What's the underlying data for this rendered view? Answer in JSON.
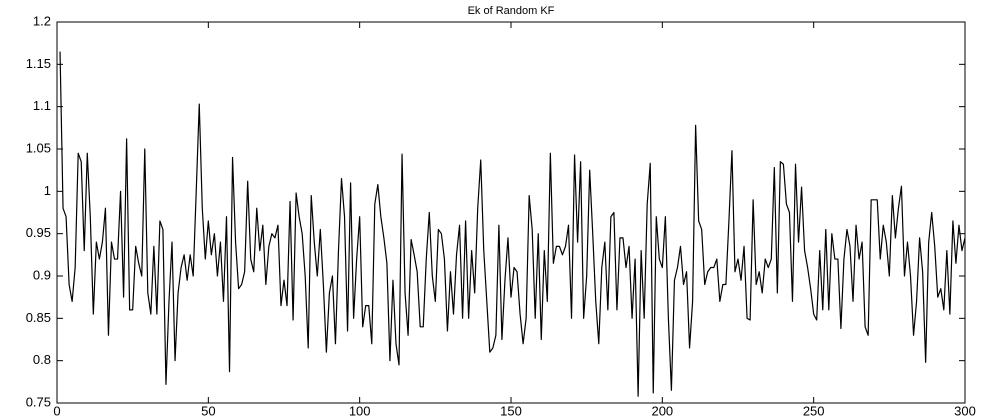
{
  "chart_data": {
    "type": "line",
    "title": "Ek of Random KF",
    "x": [
      1,
      2,
      3,
      4,
      5,
      6,
      7,
      8,
      9,
      10,
      11,
      12,
      13,
      14,
      15,
      16,
      17,
      18,
      19,
      20,
      21,
      22,
      23,
      24,
      25,
      26,
      27,
      28,
      29,
      30,
      31,
      32,
      33,
      34,
      35,
      36,
      37,
      38,
      39,
      40,
      41,
      42,
      43,
      44,
      45,
      46,
      47,
      48,
      49,
      50,
      51,
      52,
      53,
      54,
      55,
      56,
      57,
      58,
      59,
      60,
      61,
      62,
      63,
      64,
      65,
      66,
      67,
      68,
      69,
      70,
      71,
      72,
      73,
      74,
      75,
      76,
      77,
      78,
      79,
      80,
      81,
      82,
      83,
      84,
      85,
      86,
      87,
      88,
      89,
      90,
      91,
      92,
      93,
      94,
      95,
      96,
      97,
      98,
      99,
      100,
      101,
      102,
      103,
      104,
      105,
      106,
      107,
      108,
      109,
      110,
      111,
      112,
      113,
      114,
      115,
      116,
      117,
      118,
      119,
      120,
      121,
      122,
      123,
      124,
      125,
      126,
      127,
      128,
      129,
      130,
      131,
      132,
      133,
      134,
      135,
      136,
      137,
      138,
      139,
      140,
      141,
      142,
      143,
      144,
      145,
      146,
      147,
      148,
      149,
      150,
      151,
      152,
      153,
      154,
      155,
      156,
      157,
      158,
      159,
      160,
      161,
      162,
      163,
      164,
      165,
      166,
      167,
      168,
      169,
      170,
      171,
      172,
      173,
      174,
      175,
      176,
      177,
      178,
      179,
      180,
      181,
      182,
      183,
      184,
      185,
      186,
      187,
      188,
      189,
      190,
      191,
      192,
      193,
      194,
      195,
      196,
      197,
      198,
      199,
      200,
      201,
      202,
      203,
      204,
      205,
      206,
      207,
      208,
      209,
      210,
      211,
      212,
      213,
      214,
      215,
      216,
      217,
      218,
      219,
      220,
      221,
      222,
      223,
      224,
      225,
      226,
      227,
      228,
      229,
      230,
      231,
      232,
      233,
      234,
      235,
      236,
      237,
      238,
      239,
      240,
      241,
      242,
      243,
      244,
      245,
      246,
      247,
      248,
      249,
      250,
      251,
      252,
      253,
      254,
      255,
      256,
      257,
      258,
      259,
      260,
      261,
      262,
      263,
      264,
      265,
      266,
      267,
      268,
      269,
      270,
      271,
      272,
      273,
      274,
      275,
      276,
      277,
      278,
      279,
      280,
      281,
      282,
      283,
      284,
      285,
      286,
      287,
      288,
      289,
      290,
      291,
      292,
      293,
      294,
      295,
      296,
      297,
      298,
      299,
      300
    ],
    "series": [
      {
        "color": "#000000",
        "values": [
          1.165,
          0.98,
          0.97,
          0.89,
          0.87,
          0.91,
          1.045,
          1.035,
          0.93,
          1.045,
          0.97,
          0.855,
          0.94,
          0.92,
          0.94,
          0.98,
          0.83,
          0.94,
          0.92,
          0.92,
          1.0,
          0.875,
          1.062,
          0.86,
          0.86,
          0.935,
          0.915,
          0.9,
          1.05,
          0.88,
          0.855,
          0.935,
          0.855,
          0.965,
          0.955,
          0.772,
          0.87,
          0.94,
          0.8,
          0.88,
          0.91,
          0.925,
          0.895,
          0.925,
          0.9,
          1.0,
          1.103,
          0.98,
          0.92,
          0.965,
          0.925,
          0.95,
          0.9,
          0.94,
          0.87,
          0.97,
          0.787,
          1.04,
          0.94,
          0.885,
          0.89,
          0.905,
          1.012,
          0.92,
          0.905,
          0.98,
          0.93,
          0.96,
          0.89,
          0.935,
          0.95,
          0.945,
          0.96,
          0.865,
          0.895,
          0.865,
          0.988,
          0.848,
          0.998,
          0.97,
          0.95,
          0.9,
          0.815,
          0.995,
          0.94,
          0.9,
          0.955,
          0.89,
          0.81,
          0.88,
          0.9,
          0.82,
          0.93,
          1.015,
          0.97,
          0.835,
          1.01,
          0.85,
          0.92,
          0.97,
          0.84,
          0.865,
          0.865,
          0.82,
          0.985,
          1.008,
          0.97,
          0.945,
          0.915,
          0.8,
          0.895,
          0.82,
          0.795,
          1.044,
          0.88,
          0.83,
          0.943,
          0.925,
          0.905,
          0.84,
          0.84,
          0.92,
          0.975,
          0.9,
          0.87,
          0.955,
          0.95,
          0.92,
          0.835,
          0.905,
          0.855,
          0.925,
          0.96,
          0.85,
          0.965,
          0.85,
          0.93,
          0.88,
          0.98,
          1.037,
          0.93,
          0.87,
          0.81,
          0.815,
          0.83,
          0.96,
          0.825,
          0.895,
          0.945,
          0.875,
          0.91,
          0.905,
          0.855,
          0.82,
          0.85,
          0.995,
          0.955,
          0.85,
          0.95,
          0.825,
          0.93,
          0.87,
          1.045,
          0.915,
          0.935,
          0.935,
          0.925,
          0.935,
          0.96,
          0.85,
          1.043,
          0.94,
          1.035,
          0.85,
          0.9,
          1.025,
          0.95,
          0.87,
          0.82,
          0.91,
          0.94,
          0.86,
          0.97,
          0.975,
          0.86,
          0.945,
          0.945,
          0.91,
          0.935,
          0.85,
          0.92,
          0.758,
          0.93,
          0.85,
          0.985,
          1.033,
          0.762,
          0.97,
          0.92,
          0.91,
          0.97,
          0.85,
          0.765,
          0.895,
          0.91,
          0.935,
          0.89,
          0.905,
          0.815,
          0.87,
          1.078,
          0.965,
          0.955,
          0.89,
          0.905,
          0.91,
          0.91,
          0.92,
          0.87,
          0.89,
          0.89,
          0.965,
          1.048,
          0.905,
          0.92,
          0.895,
          0.935,
          0.85,
          0.848,
          0.99,
          0.89,
          0.905,
          0.88,
          0.92,
          0.91,
          0.92,
          1.028,
          0.88,
          1.035,
          1.032,
          0.985,
          0.975,
          0.87,
          1.032,
          0.94,
          1.005,
          0.93,
          0.91,
          0.885,
          0.855,
          0.848,
          0.93,
          0.86,
          0.955,
          0.86,
          0.95,
          0.92,
          0.92,
          0.838,
          0.92,
          0.955,
          0.935,
          0.87,
          0.96,
          0.92,
          0.94,
          0.84,
          0.83,
          0.99,
          0.99,
          0.99,
          0.92,
          0.96,
          0.94,
          0.9,
          0.995,
          0.945,
          0.98,
          1.006,
          0.9,
          0.94,
          0.9,
          0.83,
          0.87,
          0.945,
          0.905,
          0.798,
          0.94,
          0.975,
          0.935,
          0.875,
          0.885,
          0.86,
          0.93,
          0.855,
          0.965,
          0.915,
          0.96,
          0.93,
          0.945
        ]
      }
    ],
    "xlim": [
      0,
      300
    ],
    "xticks": [
      0,
      50,
      100,
      150,
      200,
      250,
      300
    ],
    "ylim": [
      0.75,
      1.2
    ],
    "yticks": [
      0.75,
      0.8,
      0.85,
      0.9,
      0.95,
      1,
      1.05,
      1.1,
      1.15,
      1.2
    ],
    "grid": false
  }
}
